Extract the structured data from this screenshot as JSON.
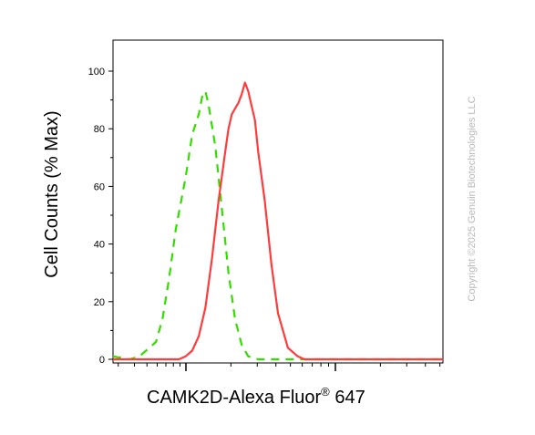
{
  "chart_data": {
    "type": "line",
    "title": "",
    "xlabel": "CAMK2D-Alexa Fluor",
    "xlabel_superscript": "®",
    "xlabel_suffix": " 647",
    "ylabel": "Cell Counts (% Max)",
    "ylim": [
      0,
      100
    ],
    "xlim": [
      0,
      100
    ],
    "x_scale": "log",
    "y_ticks": [
      "0",
      "20",
      "40",
      "60",
      "80",
      "100"
    ],
    "grid": false,
    "legend": "none",
    "series": [
      {
        "style": "dashed",
        "color": "#33dd00",
        "x": [
          0,
          5,
          8,
          10,
          13,
          15,
          17,
          19,
          22,
          24,
          26,
          27,
          28,
          29,
          31,
          33,
          35,
          37,
          39,
          41,
          44,
          50,
          100
        ],
        "y": [
          1,
          0,
          1,
          3,
          6,
          14,
          28,
          45,
          63,
          78,
          85,
          91,
          93,
          88,
          74,
          52,
          30,
          14,
          5,
          1,
          0,
          0,
          0
        ]
      },
      {
        "style": "solid",
        "color": "#ff3b3b",
        "x": [
          0,
          20,
          22,
          24,
          26,
          28,
          30,
          32,
          34,
          35,
          36,
          37,
          38,
          39,
          40,
          41,
          42,
          43,
          44,
          46,
          48,
          50,
          53,
          56,
          58,
          60,
          65,
          75,
          100
        ],
        "y": [
          0,
          0,
          1,
          3,
          8,
          18,
          35,
          55,
          72,
          80,
          85,
          87,
          89,
          92,
          96,
          93,
          88,
          83,
          72,
          55,
          33,
          16,
          4,
          1,
          0,
          0,
          0,
          0,
          0
        ]
      }
    ]
  },
  "watermark": "Copyright ©2025 Genuin Biotechnologies LLC"
}
